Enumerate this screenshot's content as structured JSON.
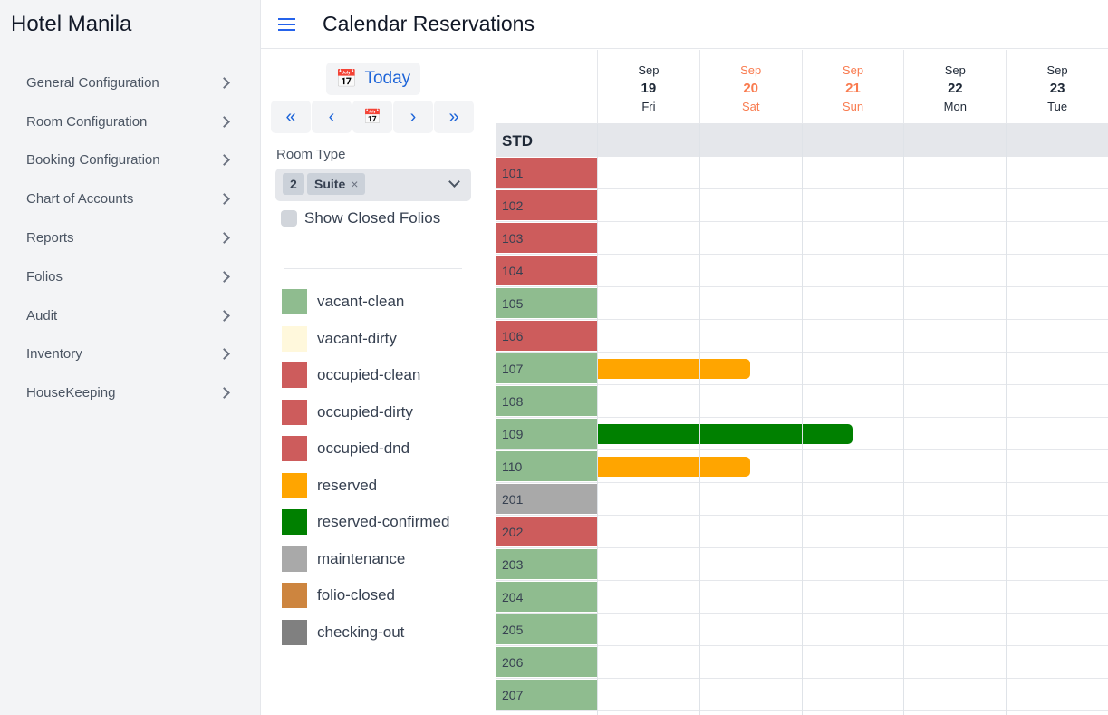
{
  "app": {
    "title": "Hotel Manila",
    "page_title": "Calendar Reservations"
  },
  "sidebar": {
    "items": [
      {
        "label": "General Configuration"
      },
      {
        "label": "Room Configuration"
      },
      {
        "label": "Booking Configuration"
      },
      {
        "label": "Chart of Accounts"
      },
      {
        "label": "Reports"
      },
      {
        "label": "Folios"
      },
      {
        "label": "Audit"
      },
      {
        "label": "Inventory"
      },
      {
        "label": "HouseKeeping"
      }
    ]
  },
  "controls": {
    "today_label": "Today",
    "room_type_label": "Room Type",
    "room_type_chips": [
      "2",
      "Suite"
    ],
    "show_closed_label": "Show Closed Folios",
    "show_closed_checked": false
  },
  "legend": [
    {
      "label": "vacant-clean",
      "color": "#8fbc8f"
    },
    {
      "label": "vacant-dirty",
      "color": "#fff8dc"
    },
    {
      "label": "occupied-clean",
      "color": "#cd5c5c"
    },
    {
      "label": "occupied-dirty",
      "color": "#cd5c5c"
    },
    {
      "label": "occupied-dnd",
      "color": "#cd5c5c"
    },
    {
      "label": "reserved",
      "color": "#ffa500"
    },
    {
      "label": "reserved-confirmed",
      "color": "#008000"
    },
    {
      "label": "maintenance",
      "color": "#a9a9a9"
    },
    {
      "label": "folio-closed",
      "color": "#cd853f"
    },
    {
      "label": "checking-out",
      "color": "#808080"
    }
  ],
  "calendar": {
    "days": [
      {
        "month": "Sep",
        "day": "19",
        "dow": "Fri",
        "weekend": false
      },
      {
        "month": "Sep",
        "day": "20",
        "dow": "Sat",
        "weekend": true
      },
      {
        "month": "Sep",
        "day": "21",
        "dow": "Sun",
        "weekend": true
      },
      {
        "month": "Sep",
        "day": "22",
        "dow": "Mon",
        "weekend": false
      },
      {
        "month": "Sep",
        "day": "23",
        "dow": "Tue",
        "weekend": false
      }
    ],
    "weekend_color": "#f97b4f",
    "room_type": "STD",
    "rooms": [
      {
        "number": "101",
        "status": "occupied-clean"
      },
      {
        "number": "102",
        "status": "occupied-clean"
      },
      {
        "number": "103",
        "status": "occupied-clean"
      },
      {
        "number": "104",
        "status": "occupied-clean"
      },
      {
        "number": "105",
        "status": "vacant-clean"
      },
      {
        "number": "106",
        "status": "occupied-clean"
      },
      {
        "number": "107",
        "status": "vacant-clean",
        "booking": {
          "status": "reserved",
          "start_day": 0,
          "nights": 1.5
        }
      },
      {
        "number": "108",
        "status": "vacant-clean"
      },
      {
        "number": "109",
        "status": "vacant-clean",
        "booking": {
          "status": "reserved-confirmed",
          "start_day": 0,
          "nights": 2.5
        }
      },
      {
        "number": "110",
        "status": "vacant-clean",
        "booking": {
          "status": "reserved",
          "start_day": 0,
          "nights": 1.5
        }
      },
      {
        "number": "201",
        "status": "maintenance"
      },
      {
        "number": "202",
        "status": "occupied-clean"
      },
      {
        "number": "203",
        "status": "vacant-clean"
      },
      {
        "number": "204",
        "status": "vacant-clean"
      },
      {
        "number": "205",
        "status": "vacant-clean"
      },
      {
        "number": "206",
        "status": "vacant-clean"
      },
      {
        "number": "207",
        "status": "vacant-clean"
      }
    ]
  }
}
